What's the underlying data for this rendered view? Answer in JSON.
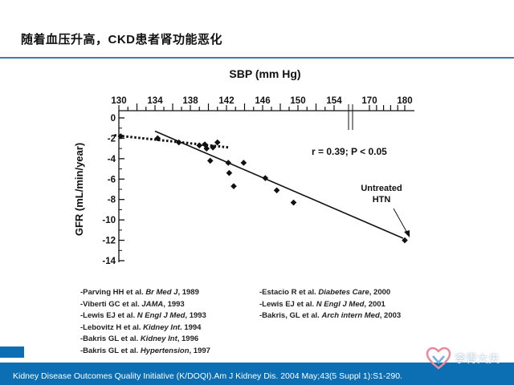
{
  "slide": {
    "title": "随着血压升高，CKD患者肾功能恶化",
    "footer": "Kidney Disease Outcomes Quality Initiative (K/DOQI).Am J Kidney Dis. 2004 May;43(5 Suppl 1):S1-290.",
    "watermark": "李青大夫",
    "colors": {
      "accent": "#0d6fb3",
      "rule": "#3d7fa6"
    }
  },
  "chart_data": {
    "type": "scatter",
    "title": "",
    "xlabel": "SBP (mm Hg)",
    "ylabel": "GFR (mL/min/year)",
    "x_ticks": [
      "130",
      "134",
      "138",
      "142",
      "146",
      "150",
      "154",
      "170",
      "180"
    ],
    "y_ticks": [
      "0",
      "-2",
      "-4",
      "-6",
      "-8",
      "-10",
      "-12",
      "-14"
    ],
    "ylim": [
      -14,
      0
    ],
    "x_axis_break_between": [
      "154",
      "170"
    ],
    "points": [
      {
        "x": 130.2,
        "y": -1.8
      },
      {
        "x": 134.3,
        "y": -2.0
      },
      {
        "x": 136.7,
        "y": -2.4
      },
      {
        "x": 139.0,
        "y": -2.7
      },
      {
        "x": 139.6,
        "y": -2.6
      },
      {
        "x": 139.8,
        "y": -3.0
      },
      {
        "x": 140.5,
        "y": -2.9
      },
      {
        "x": 141.0,
        "y": -2.4
      },
      {
        "x": 140.2,
        "y": -4.2
      },
      {
        "x": 142.2,
        "y": -4.4
      },
      {
        "x": 142.3,
        "y": -5.4
      },
      {
        "x": 142.8,
        "y": -6.7
      },
      {
        "x": 143.9,
        "y": -4.4
      },
      {
        "x": 146.3,
        "y": -5.9
      },
      {
        "x": 147.6,
        "y": -7.1
      },
      {
        "x": 149.5,
        "y": -8.3
      },
      {
        "x": 180.0,
        "y": -12.0
      }
    ],
    "lines": [
      {
        "name": "regression",
        "style": "solid",
        "from": {
          "x": 134.0,
          "y": -1.3
        },
        "to": {
          "x": 179.5,
          "y": -11.8
        }
      },
      {
        "name": "trend",
        "style": "dotted",
        "from": {
          "x": 129.5,
          "y": -1.7
        },
        "to": {
          "x": 142.3,
          "y": -2.9
        }
      }
    ],
    "annotations": [
      {
        "name": "correlation",
        "text": "r = 0.39; P < 0.05"
      },
      {
        "name": "untreated-line1",
        "text": "Untreated"
      },
      {
        "name": "untreated-line2",
        "text": "HTN"
      }
    ]
  },
  "references": {
    "left": [
      {
        "text": "-Parving HH et al.",
        "journal": "Br Med J",
        "year": ", 1989"
      },
      {
        "text": "-Viberti GC et al.",
        "journal": "JAMA",
        "year": ", 1993"
      },
      {
        "text": "-Lewis EJ et al.",
        "journal": "N Engl J Med",
        "year": ", 1993"
      },
      {
        "text": "-Lebovitz H et al.",
        "journal": "Kidney Int",
        "year": ". 1994"
      },
      {
        "text": "-Bakris GL et al.",
        "journal": "Kidney Int",
        "year": ", 1996"
      },
      {
        "text": "-Bakris GL et al.",
        "journal": "Hypertension",
        "year": ", 1997"
      }
    ],
    "right": [
      {
        "text": "-Estacio R et al.",
        "journal": "Diabetes Care",
        "year": ", 2000"
      },
      {
        "text": "-Lewis EJ et al.",
        "journal": "N Engl J Med",
        "year": ", 2001"
      },
      {
        "text": "-Bakris, GL et al.",
        "journal": "Arch intern Med",
        "year": ", 2003"
      }
    ]
  }
}
